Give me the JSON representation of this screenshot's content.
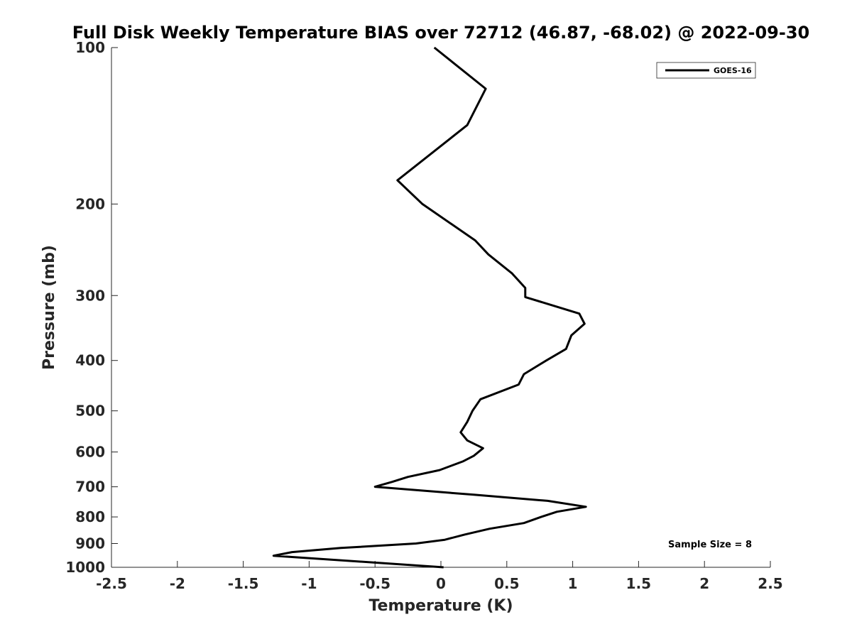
{
  "chart_data": {
    "type": "line",
    "title": "Full Disk Weekly Temperature BIAS over 72712 (46.87, -68.02) @ 2022-09-30",
    "xlabel": "Temperature (K)",
    "ylabel": "Pressure (mb)",
    "xlim": [
      -2.5,
      2.5
    ],
    "ylim": [
      100,
      1000
    ],
    "y_scale": "log",
    "y_reversed": true,
    "x_ticks": [
      "-2.5",
      "-2",
      "-1.5",
      "-1",
      "-0.5",
      "0",
      "0.5",
      "1",
      "1.5",
      "2",
      "2.5"
    ],
    "y_ticks": [
      "100",
      "200",
      "300",
      "400",
      "500",
      "600",
      "700",
      "800",
      "900",
      "1000"
    ],
    "grid": false,
    "legend_position": "top-right",
    "series": [
      {
        "name": "GOES-16",
        "color": "#000000",
        "points": [
          {
            "x": -0.05,
            "y": 100
          },
          {
            "x": 0.34,
            "y": 120
          },
          {
            "x": 0.2,
            "y": 141
          },
          {
            "x": -0.33,
            "y": 180
          },
          {
            "x": -0.14,
            "y": 200
          },
          {
            "x": 0.26,
            "y": 235
          },
          {
            "x": 0.36,
            "y": 250
          },
          {
            "x": 0.54,
            "y": 272
          },
          {
            "x": 0.64,
            "y": 290
          },
          {
            "x": 0.64,
            "y": 302
          },
          {
            "x": 1.05,
            "y": 325
          },
          {
            "x": 1.09,
            "y": 340
          },
          {
            "x": 0.99,
            "y": 358
          },
          {
            "x": 0.95,
            "y": 380
          },
          {
            "x": 0.8,
            "y": 400
          },
          {
            "x": 0.63,
            "y": 425
          },
          {
            "x": 0.59,
            "y": 445
          },
          {
            "x": 0.3,
            "y": 475
          },
          {
            "x": 0.24,
            "y": 500
          },
          {
            "x": 0.2,
            "y": 525
          },
          {
            "x": 0.15,
            "y": 550
          },
          {
            "x": 0.2,
            "y": 570
          },
          {
            "x": 0.32,
            "y": 590
          },
          {
            "x": 0.25,
            "y": 610
          },
          {
            "x": 0.17,
            "y": 625
          },
          {
            "x": -0.01,
            "y": 650
          },
          {
            "x": -0.25,
            "y": 670
          },
          {
            "x": -0.37,
            "y": 685
          },
          {
            "x": -0.5,
            "y": 700
          },
          {
            "x": 0.25,
            "y": 725
          },
          {
            "x": 0.81,
            "y": 745
          },
          {
            "x": 1.1,
            "y": 765
          },
          {
            "x": 0.88,
            "y": 782
          },
          {
            "x": 0.76,
            "y": 800
          },
          {
            "x": 0.63,
            "y": 822
          },
          {
            "x": 0.37,
            "y": 843
          },
          {
            "x": 0.18,
            "y": 865
          },
          {
            "x": 0.03,
            "y": 885
          },
          {
            "x": -0.19,
            "y": 900
          },
          {
            "x": -0.76,
            "y": 918
          },
          {
            "x": -1.13,
            "y": 935
          },
          {
            "x": -1.27,
            "y": 950
          },
          {
            "x": 0.02,
            "y": 1000
          }
        ]
      }
    ],
    "annotations": [
      "Sample Size = 8"
    ]
  }
}
